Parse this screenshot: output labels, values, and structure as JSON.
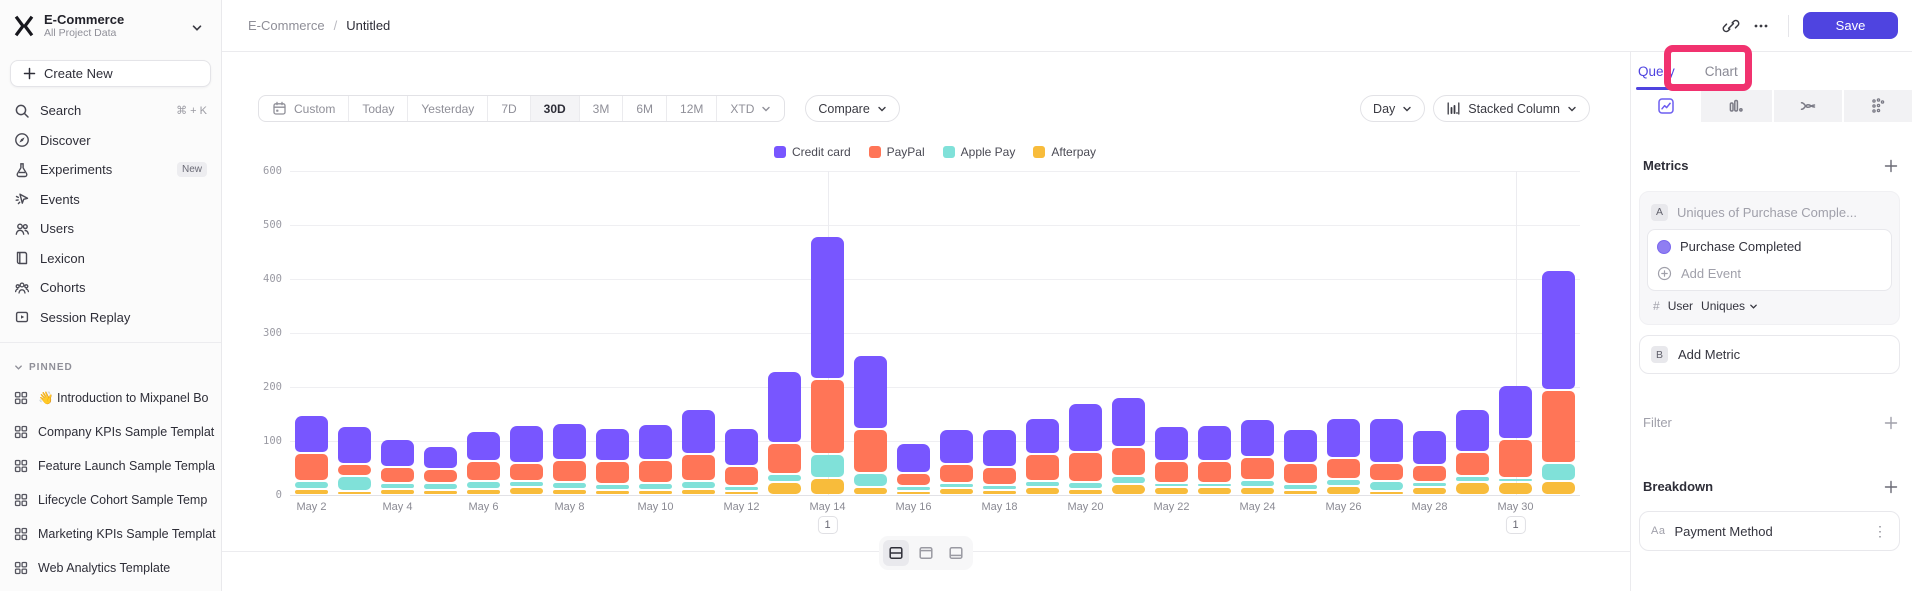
{
  "colors": {
    "accent": "#4f44e0",
    "annotation_highlight": "#f1326f",
    "sidebar_bg": "#fbfbfb",
    "series": {
      "credit_card": "#7856FF",
      "paypal": "#FF7557",
      "apple_pay": "#80E1D9",
      "afterpay": "#F8BC3B"
    }
  },
  "sidebar": {
    "project": {
      "name": "E-Commerce",
      "subtitle": "All Project Data"
    },
    "create_new_label": "Create New",
    "nav": [
      {
        "label": "Search",
        "icon": "search-icon",
        "right": "⌘ + K"
      },
      {
        "label": "Discover",
        "icon": "discover-icon"
      },
      {
        "label": "Experiments",
        "icon": "experiments-icon",
        "badge": "New"
      },
      {
        "label": "Events",
        "icon": "events-icon"
      },
      {
        "label": "Users",
        "icon": "users-icon"
      },
      {
        "label": "Lexicon",
        "icon": "lexicon-icon"
      },
      {
        "label": "Cohorts",
        "icon": "cohorts-icon"
      },
      {
        "label": "Session Replay",
        "icon": "session-replay-icon"
      }
    ],
    "pinned_header": "PINNED",
    "pinned": [
      "👋 Introduction to Mixpanel Bo",
      "Company KPIs Sample Templat",
      "Feature Launch Sample Templa",
      "Lifecycle Cohort Sample Temp",
      "Marketing KPIs Sample Templat",
      "Web Analytics Template"
    ]
  },
  "header": {
    "breadcrumb": {
      "project": "E-Commerce",
      "separator": "/",
      "page": "Untitled"
    },
    "save_label": "Save"
  },
  "toolbar": {
    "date_ranges": [
      "Custom",
      "Today",
      "Yesterday",
      "7D",
      "30D",
      "3M",
      "6M",
      "12M",
      "XTD"
    ],
    "selected_range": "30D",
    "compare_label": "Compare",
    "granularity_label": "Day",
    "chart_type_label": "Stacked Column"
  },
  "panel": {
    "tabs": [
      "Query",
      "Chart"
    ],
    "active_tab": "Query",
    "metrics": {
      "title": "Metrics",
      "row_letter": "A",
      "row_placeholder": "Uniques of Purchase Comple...",
      "event_name": "Purchase Completed",
      "add_event_label": "Add Event",
      "count_symbol": "#",
      "count_entity": "User",
      "count_mode": "Uniques",
      "add_metric_letter": "B",
      "add_metric_label": "Add Metric"
    },
    "filter_title": "Filter",
    "breakdown_title": "Breakdown",
    "breakdown_property_icon": "Aa",
    "breakdown_property": "Payment Method"
  },
  "chart_data": {
    "type": "bar",
    "stacked": true,
    "grid": true,
    "legend_position": "top",
    "ylim": [
      0,
      600
    ],
    "yticks": [
      0,
      100,
      200,
      300,
      400,
      500,
      600
    ],
    "x_tick_every": 2,
    "categories": [
      "May 2",
      "May 3",
      "May 4",
      "May 5",
      "May 6",
      "May 7",
      "May 8",
      "May 9",
      "May 10",
      "May 11",
      "May 12",
      "May 13",
      "May 14",
      "May 15",
      "May 16",
      "May 17",
      "May 18",
      "May 19",
      "May 20",
      "May 21",
      "May 22",
      "May 23",
      "May 24",
      "May 25",
      "May 26",
      "May 27",
      "May 28",
      "May 29",
      "May 30",
      "May 31"
    ],
    "series": [
      {
        "name": "Credit card",
        "color": "#7856FF",
        "values": [
          71,
          70,
          52,
          42,
          56,
          70,
          69,
          62,
          66,
          83,
          71,
          133,
          265,
          137,
          56,
          66,
          71,
          67,
          91,
          92,
          64,
          67,
          69,
          62,
          75,
          84,
          65,
          79,
          100,
          223
        ]
      },
      {
        "name": "PayPal",
        "color": "#FF7557",
        "values": [
          51,
          23,
          28,
          26,
          37,
          34,
          40,
          43,
          42,
          50,
          37,
          58,
          139,
          81,
          24,
          35,
          33,
          50,
          55,
          54,
          40,
          40,
          43,
          39,
          39,
          33,
          31,
          45,
          71,
          135
        ]
      },
      {
        "name": "Apple Pay",
        "color": "#80E1D9",
        "values": [
          14,
          27,
          11,
          13,
          14,
          12,
          14,
          11,
          14,
          15,
          9,
          14,
          44,
          26,
          9,
          9,
          10,
          12,
          14,
          15,
          9,
          4,
          14,
          11,
          12,
          18,
          10,
          11,
          4,
          33
        ]
      },
      {
        "name": "Afterpay",
        "color": "#F8BC3B",
        "values": [
          12,
          7,
          12,
          10,
          12,
          14,
          11,
          9,
          9,
          11,
          8,
          25,
          32,
          15,
          8,
          13,
          9,
          14,
          11,
          20,
          14,
          15,
          14,
          10,
          17,
          8,
          14,
          24,
          25,
          26
        ]
      }
    ],
    "annotations": [
      {
        "category": "May 14",
        "label": "1"
      },
      {
        "category": "May 30",
        "label": "1"
      }
    ]
  }
}
